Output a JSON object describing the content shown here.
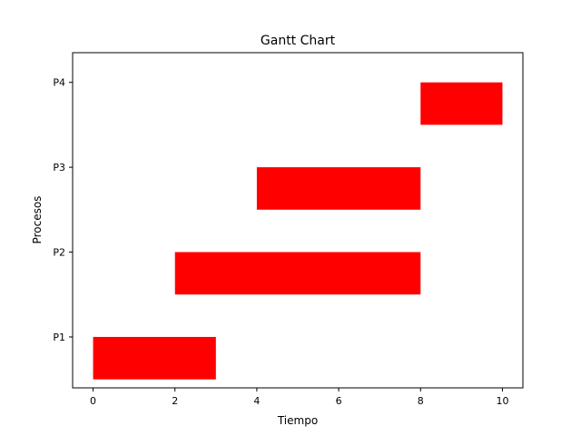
{
  "chart_data": {
    "type": "gantt",
    "title": "Gantt Chart",
    "xlabel": "Tiempo",
    "ylabel": "Procesos",
    "xlim": [
      -0.5,
      10.5
    ],
    "ylim": [
      0.4,
      4.35
    ],
    "xticks": [
      0,
      2,
      4,
      6,
      8,
      10
    ],
    "yticks": [
      "P1",
      "P2",
      "P3",
      "P4"
    ],
    "grid": false,
    "bar_color": "#ff0000",
    "tasks": [
      {
        "label": "P1",
        "start": 0,
        "end": 3
      },
      {
        "label": "P2",
        "start": 2,
        "end": 8
      },
      {
        "label": "P3",
        "start": 4,
        "end": 8
      },
      {
        "label": "P4",
        "start": 8,
        "end": 10
      }
    ]
  }
}
